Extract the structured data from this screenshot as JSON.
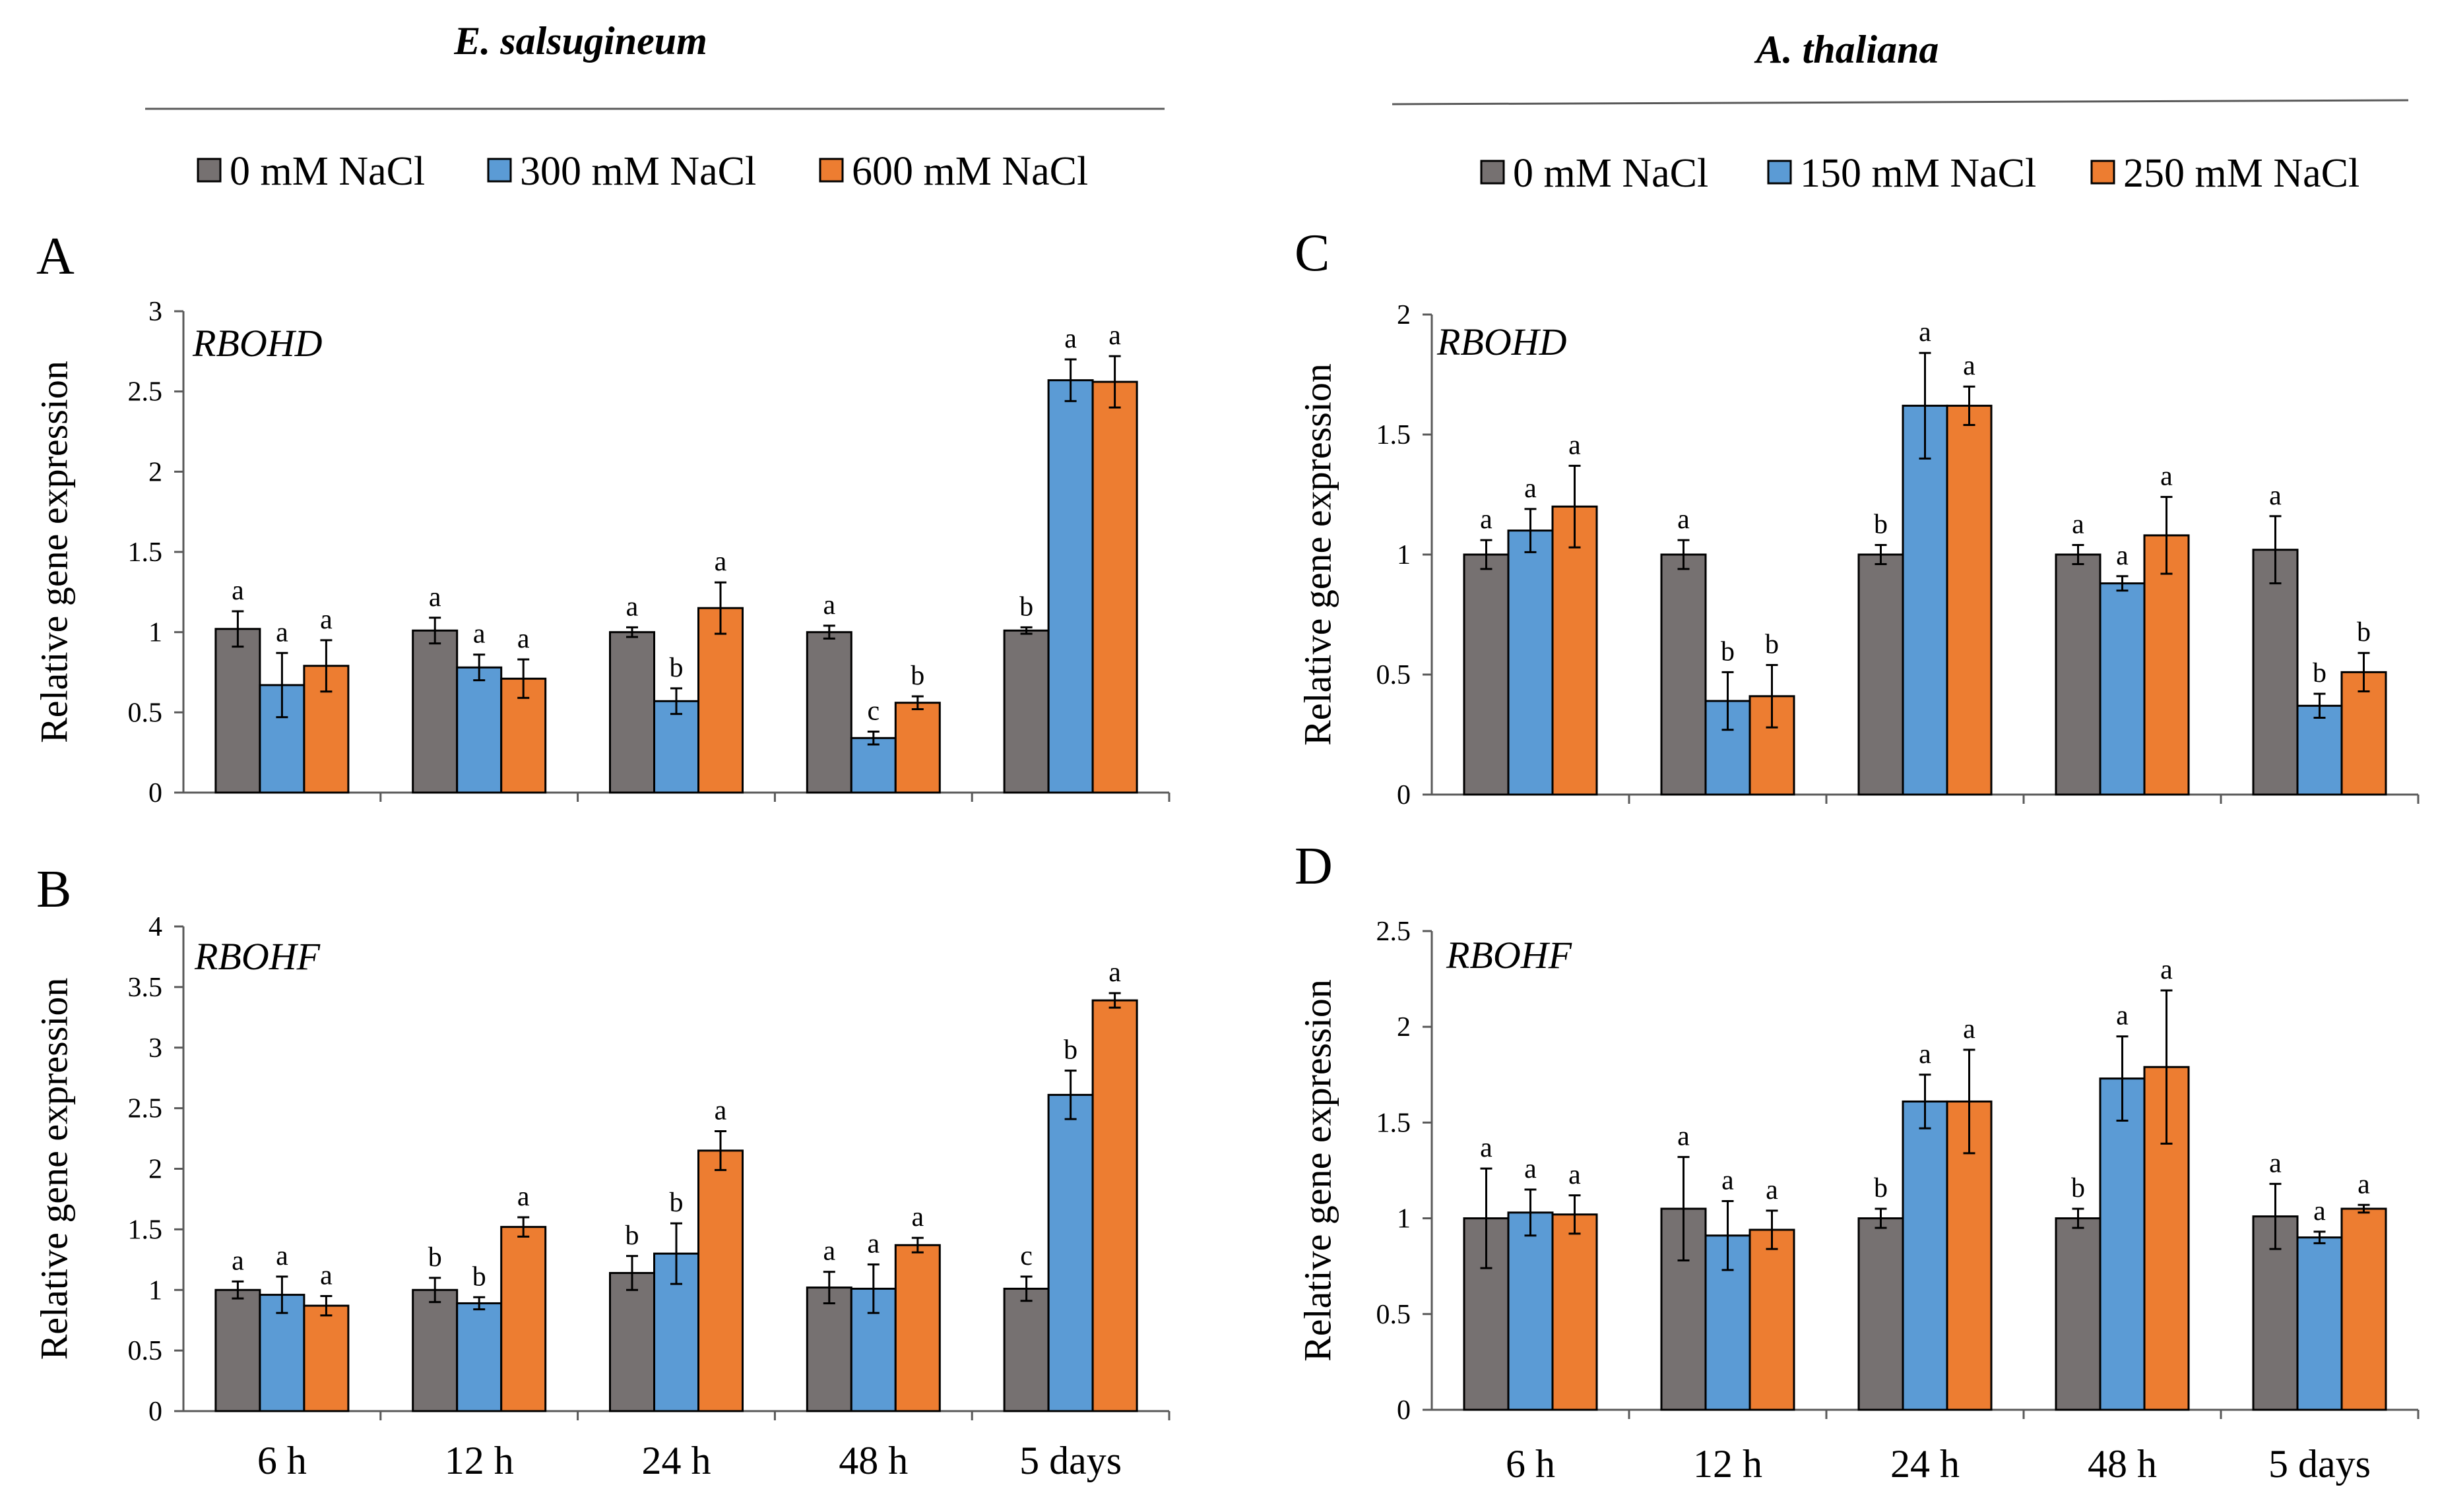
{
  "figure": {
    "colors": {
      "s0": "#767171",
      "s1": "#5B9BD5",
      "s2": "#ED7D31",
      "axis": "#595959",
      "text": "#000000",
      "errorbar": "#000000"
    }
  },
  "headers": [
    {
      "title": "E. salsugineum",
      "legend": [
        "0 mM NaCl",
        "300 mM NaCl",
        "600 mM NaCl"
      ]
    },
    {
      "title": "A. thaliana",
      "legend": [
        "0 mM NaCl",
        "150 mM NaCl",
        "250 mM NaCl"
      ]
    }
  ],
  "chart_data": [
    {
      "panel": "A",
      "type": "bar",
      "gene": "RBOHD",
      "species": "E. salsugineum",
      "ylabel": "Relative gene expression",
      "xlabel": "",
      "ylim": [
        0,
        3
      ],
      "yticks": [
        "0",
        "0.5",
        "1",
        "1.5",
        "2",
        "2.5",
        "3"
      ],
      "grid": false,
      "categories": [
        "6 h",
        "12 h",
        "24 h",
        "48 h",
        "5 days"
      ],
      "series": [
        {
          "name": "0 mM NaCl",
          "values": [
            1.02,
            1.01,
            1.0,
            1.0,
            1.01
          ],
          "errors": [
            0.11,
            0.08,
            0.03,
            0.04,
            0.02
          ],
          "letters": [
            "a",
            "a",
            "a",
            "a",
            "b"
          ]
        },
        {
          "name": "300 mM NaCl",
          "values": [
            0.67,
            0.78,
            0.57,
            0.34,
            2.57
          ],
          "errors": [
            0.2,
            0.08,
            0.08,
            0.04,
            0.13
          ],
          "letters": [
            "a",
            "a",
            "b",
            "c",
            "a"
          ]
        },
        {
          "name": "600 mM NaCl",
          "values": [
            0.79,
            0.71,
            1.15,
            0.56,
            2.56
          ],
          "errors": [
            0.16,
            0.12,
            0.16,
            0.04,
            0.16
          ],
          "letters": [
            "a",
            "a",
            "a",
            "b",
            "a"
          ]
        }
      ]
    },
    {
      "panel": "B",
      "type": "bar",
      "gene": "RBOHF",
      "species": "E. salsugineum",
      "ylabel": "Relative gene expression",
      "xlabel": "",
      "ylim": [
        0,
        4
      ],
      "yticks": [
        "0",
        "0.5",
        "1",
        "1.5",
        "2",
        "2.5",
        "3",
        "3.5",
        "4"
      ],
      "grid": false,
      "categories": [
        "6 h",
        "12 h",
        "24 h",
        "48 h",
        "5 days"
      ],
      "series": [
        {
          "name": "0 mM NaCl",
          "values": [
            1.0,
            1.0,
            1.14,
            1.02,
            1.01
          ],
          "errors": [
            0.07,
            0.1,
            0.14,
            0.13,
            0.1
          ],
          "letters": [
            "a",
            "b",
            "b",
            "a",
            "c"
          ]
        },
        {
          "name": "300 mM NaCl",
          "values": [
            0.96,
            0.89,
            1.3,
            1.01,
            2.61
          ],
          "errors": [
            0.15,
            0.05,
            0.25,
            0.2,
            0.2
          ],
          "letters": [
            "a",
            "b",
            "b",
            "a",
            "b"
          ]
        },
        {
          "name": "600 mM NaCl",
          "values": [
            0.87,
            1.52,
            2.15,
            1.37,
            3.39
          ],
          "errors": [
            0.08,
            0.08,
            0.16,
            0.06,
            0.06
          ],
          "letters": [
            "a",
            "a",
            "a",
            "a",
            "a"
          ]
        }
      ]
    },
    {
      "panel": "C",
      "type": "bar",
      "gene": "RBOHD",
      "species": "A. thaliana",
      "ylabel": "Relative gene expression",
      "xlabel": "",
      "ylim": [
        0,
        2
      ],
      "yticks": [
        "0",
        "0.5",
        "1",
        "1.5",
        "2"
      ],
      "grid": false,
      "categories": [
        "6 h",
        "12 h",
        "24 h",
        "48 h",
        "5 days"
      ],
      "series": [
        {
          "name": "0 mM NaCl",
          "values": [
            1.0,
            1.0,
            1.0,
            1.0,
            1.02
          ],
          "errors": [
            0.06,
            0.06,
            0.04,
            0.04,
            0.14
          ],
          "letters": [
            "a",
            "a",
            "b",
            "a",
            "a"
          ]
        },
        {
          "name": "150 mM NaCl",
          "values": [
            1.1,
            0.39,
            1.62,
            0.88,
            0.37
          ],
          "errors": [
            0.09,
            0.12,
            0.22,
            0.03,
            0.05
          ],
          "letters": [
            "a",
            "b",
            "a",
            "a",
            "b"
          ]
        },
        {
          "name": "250 mM NaCl",
          "values": [
            1.2,
            0.41,
            1.62,
            1.08,
            0.51
          ],
          "errors": [
            0.17,
            0.13,
            0.08,
            0.16,
            0.08
          ],
          "letters": [
            "a",
            "b",
            "a",
            "a",
            "b"
          ]
        }
      ]
    },
    {
      "panel": "D",
      "type": "bar",
      "gene": "RBOHF",
      "species": "A. thaliana",
      "ylabel": "Relative gene expression",
      "xlabel": "",
      "ylim": [
        0,
        2.5
      ],
      "yticks": [
        "0",
        "0.5",
        "1",
        "1.5",
        "2",
        "2.5"
      ],
      "grid": false,
      "categories": [
        "6 h",
        "12 h",
        "24 h",
        "48 h",
        "5 days"
      ],
      "series": [
        {
          "name": "0 mM NaCl",
          "values": [
            1.0,
            1.05,
            1.0,
            1.0,
            1.01
          ],
          "errors": [
            0.26,
            0.27,
            0.05,
            0.05,
            0.17
          ],
          "letters": [
            "a",
            "a",
            "b",
            "b",
            "a"
          ]
        },
        {
          "name": "150 mM NaCl",
          "values": [
            1.03,
            0.91,
            1.61,
            1.73,
            0.9
          ],
          "errors": [
            0.12,
            0.18,
            0.14,
            0.22,
            0.03
          ],
          "letters": [
            "a",
            "a",
            "a",
            "a",
            "a"
          ]
        },
        {
          "name": "250 mM NaCl",
          "values": [
            1.02,
            0.94,
            1.61,
            1.79,
            1.05
          ],
          "errors": [
            0.1,
            0.1,
            0.27,
            0.4,
            0.02
          ],
          "letters": [
            "a",
            "a",
            "a",
            "a",
            "a"
          ]
        }
      ]
    }
  ]
}
